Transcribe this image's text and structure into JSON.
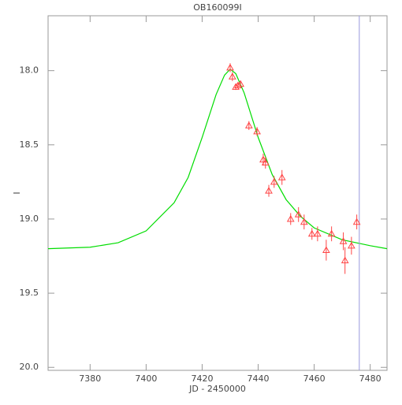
{
  "chart_data": {
    "type": "scatter",
    "title": "OB160099I",
    "x_label": "JD - 2450000",
    "y_label": "I",
    "xlim": [
      7365,
      7486
    ],
    "ylim": [
      20.02,
      17.63
    ],
    "xticks": [
      7380,
      7400,
      7420,
      7440,
      7460,
      7480
    ],
    "yticks": [
      {
        "value": 18.0,
        "label": "18.0"
      },
      {
        "value": 18.5,
        "label": "18.5"
      },
      {
        "value": 19.0,
        "label": "19.0"
      },
      {
        "value": 19.5,
        "label": "19.5"
      },
      {
        "value": 20.0,
        "label": "20.0"
      }
    ],
    "axis_color": "#999999",
    "vline": {
      "x": 7476.1,
      "color": "#9999dd"
    },
    "model": {
      "color": "#00dd00",
      "x": [
        7365,
        7380,
        7390,
        7400,
        7410,
        7415,
        7420,
        7425,
        7428,
        7430,
        7432,
        7435,
        7440,
        7445,
        7450,
        7455,
        7460,
        7470,
        7480,
        7486
      ],
      "values": [
        19.2,
        19.19,
        19.16,
        19.08,
        18.89,
        18.72,
        18.45,
        18.16,
        18.03,
        17.99,
        18.02,
        18.15,
        18.45,
        18.7,
        18.87,
        18.98,
        19.06,
        19.14,
        19.18,
        19.2
      ]
    },
    "series": [
      {
        "color": "#ff4444",
        "x": [
          7430.0,
          7430.8,
          7432.0,
          7432.8,
          7433.7,
          7436.7,
          7439.6,
          7441.8,
          7442.6,
          7443.8,
          7445.7,
          7448.5,
          7451.6,
          7454.4,
          7456.4,
          7459.2,
          7461.2,
          7464.3,
          7466.2,
          7470.4,
          7471.0,
          7473.3,
          7475.2
        ],
        "values": [
          17.98,
          18.04,
          18.11,
          18.1,
          18.09,
          18.37,
          18.41,
          18.6,
          18.62,
          18.81,
          18.75,
          18.72,
          19.0,
          18.97,
          19.02,
          19.1,
          19.1,
          19.21,
          19.1,
          19.15,
          19.28,
          19.18,
          19.02
        ],
        "errors": [
          0.03,
          0.03,
          0.02,
          0.02,
          0.02,
          0.03,
          0.03,
          0.04,
          0.04,
          0.04,
          0.04,
          0.05,
          0.04,
          0.05,
          0.05,
          0.04,
          0.05,
          0.07,
          0.05,
          0.06,
          0.09,
          0.06,
          0.05
        ]
      }
    ]
  }
}
